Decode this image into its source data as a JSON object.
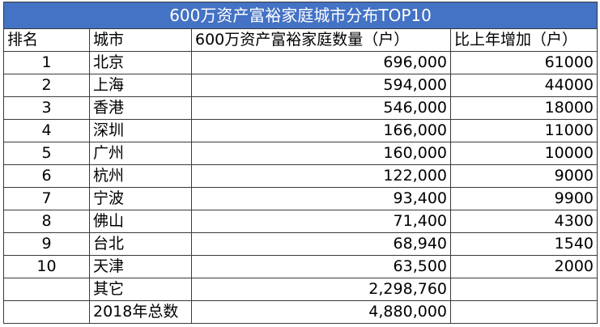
{
  "table": {
    "title": "600万资产富裕家庭城市分布TOP10",
    "headers": [
      "排名",
      "城市",
      "600万资产富裕家庭数量（户）",
      "比上年增加（户）"
    ],
    "rows": [
      {
        "rank": "1",
        "city": "北京",
        "count": "696,000",
        "increase": "61000"
      },
      {
        "rank": "2",
        "city": "上海",
        "count": "594,000",
        "increase": "44000"
      },
      {
        "rank": "3",
        "city": "香港",
        "count": "546,000",
        "increase": "18000"
      },
      {
        "rank": "4",
        "city": "深圳",
        "count": "166,000",
        "increase": "11000"
      },
      {
        "rank": "5",
        "city": "广州",
        "count": "160,000",
        "increase": "10000"
      },
      {
        "rank": "6",
        "city": "杭州",
        "count": "122,000",
        "increase": "9000"
      },
      {
        "rank": "7",
        "city": "宁波",
        "count": "93,400",
        "increase": "9900"
      },
      {
        "rank": "8",
        "city": "佛山",
        "count": "71,400",
        "increase": "4300"
      },
      {
        "rank": "9",
        "city": "台北",
        "count": "68,940",
        "increase": "1540"
      },
      {
        "rank": "10",
        "city": "天津",
        "count": "63,500",
        "increase": "2000"
      }
    ],
    "other": {
      "label": "其它",
      "count": "2,298,760"
    },
    "total": {
      "label": "2018年总数",
      "count": "4,880,000"
    }
  },
  "colors": {
    "title_background": "#4472c4",
    "title_text": "#ffffff",
    "border": "#3a3a3a"
  }
}
